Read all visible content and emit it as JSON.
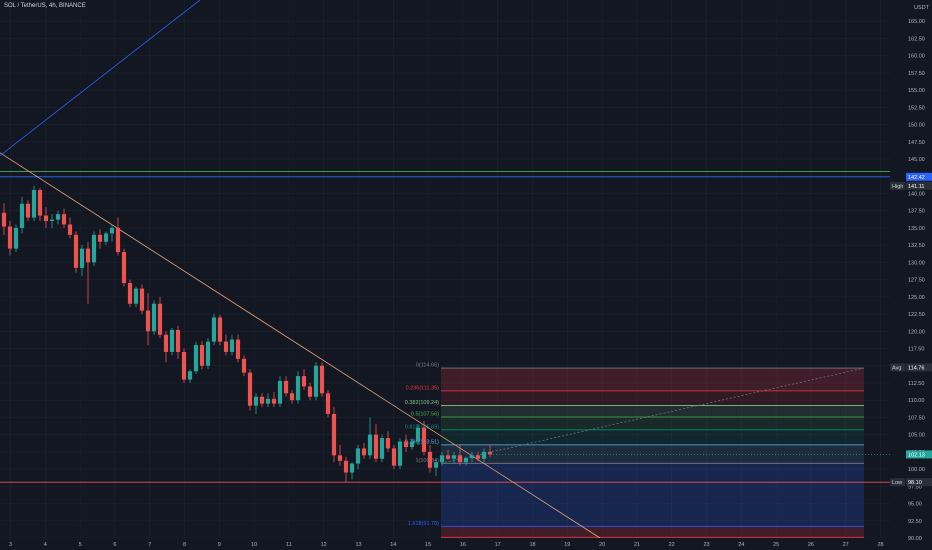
{
  "header": {
    "symbol_title": "SOL / TetherUS, 4h, BINANCE"
  },
  "colors": {
    "background": "#131722",
    "grid": "#1e2230",
    "bull": "#26a69a",
    "bear": "#ef5350",
    "axis_text": "#b2b5be",
    "trendline": "#e6a47a",
    "fib_ray": "#2962ff"
  },
  "price_axis": {
    "currency_label": "USDT",
    "min": 90,
    "max": 167.5,
    "ticks": [
      "165.00",
      "162.50",
      "160.00",
      "157.50",
      "155.00",
      "152.50",
      "150.00",
      "147.50",
      "145.00",
      "142.50",
      "140.00",
      "137.50",
      "135.00",
      "132.50",
      "130.00",
      "127.50",
      "125.00",
      "122.50",
      "120.00",
      "117.50",
      "115.00",
      "112.50",
      "110.00",
      "107.50",
      "105.00",
      "102.50",
      "100.00",
      "97.50",
      "95.00",
      "92.50",
      "90.00"
    ],
    "badges": [
      {
        "label": "",
        "value": "142.42",
        "price": 142.42,
        "color": "#2962ff"
      },
      {
        "label": "High",
        "value": "141.11",
        "price": 141.11,
        "color": "#2a2e39"
      },
      {
        "label": "Avg",
        "value": "114.76",
        "price": 114.76,
        "color": "#2a2e39"
      },
      {
        "label": "",
        "value": "102.13",
        "price": 102.13,
        "color": "#26a69a"
      },
      {
        "label": "Low",
        "value": "98.10",
        "price": 98.1,
        "color": "#2a2e39"
      }
    ]
  },
  "time_axis": {
    "labels": [
      "3",
      "4",
      "5",
      "6",
      "7",
      "8",
      "9",
      "10",
      "11",
      "12",
      "13",
      "14",
      "15",
      "16",
      "17",
      "18",
      "19",
      "20",
      "21",
      "22",
      "23",
      "24",
      "25",
      "26",
      "27",
      "28"
    ]
  },
  "horizontal_lines": [
    {
      "price": 143.2,
      "color": "#4caf50"
    },
    {
      "price": 142.42,
      "color": "#2962ff"
    },
    {
      "price": 98.1,
      "color": "#ef5350"
    }
  ],
  "fibonacci": {
    "levels": [
      {
        "label": "0(114.66)",
        "price": 114.66,
        "color": "#787b86"
      },
      {
        "label": "0.236(111.35)",
        "price": 111.35,
        "color": "#f23645"
      },
      {
        "label": "0.382(109.24)",
        "price": 109.24,
        "color": "#81c784"
      },
      {
        "label": "0.5(107.56)",
        "price": 107.56,
        "color": "#4caf50"
      },
      {
        "label": "0.618(105.69)",
        "price": 105.69,
        "color": "#089981"
      },
      {
        "label": "0.786(103.51)",
        "price": 103.51,
        "color": "#64b5f6"
      },
      {
        "label": "1(100.84)",
        "price": 100.84,
        "color": "#787b86"
      },
      {
        "label": "1.618(91.70)",
        "price": 91.7,
        "color": "#2962ff"
      },
      {
        "label": "",
        "price": 90.1,
        "color": "#f23645"
      }
    ]
  },
  "chart_data": {
    "type": "candlestick",
    "title": "SOL / TetherUS, 4h, BINANCE",
    "y_unit": "USDT",
    "ylim": [
      90,
      167.5
    ],
    "x_labels": [
      "3",
      "4",
      "5",
      "6",
      "7",
      "8",
      "9",
      "10",
      "11",
      "12",
      "13",
      "14",
      "15",
      "16",
      "17",
      "18",
      "19",
      "20",
      "21",
      "22",
      "23",
      "24",
      "25",
      "26",
      "27",
      "28"
    ],
    "candles": [
      [
        137.2,
        138.6,
        134.0,
        135.2
      ],
      [
        135.2,
        136.0,
        131.0,
        132.0
      ],
      [
        132.0,
        135.5,
        131.5,
        135.0
      ],
      [
        135.0,
        139.5,
        134.2,
        138.5
      ],
      [
        138.5,
        139.0,
        136.0,
        136.5
      ],
      [
        136.5,
        141.1,
        136.0,
        140.5
      ],
      [
        140.5,
        140.8,
        136.0,
        136.8
      ],
      [
        136.8,
        138.0,
        135.0,
        136.0
      ],
      [
        136.0,
        137.0,
        135.0,
        136.2
      ],
      [
        136.2,
        137.5,
        135.5,
        137.0
      ],
      [
        137.0,
        137.8,
        135.0,
        135.5
      ],
      [
        135.5,
        136.5,
        133.5,
        134.0
      ],
      [
        134.0,
        134.5,
        128.5,
        129.2
      ],
      [
        129.2,
        132.5,
        128.0,
        132.0
      ],
      [
        132.0,
        133.0,
        124.0,
        130.0
      ],
      [
        130.0,
        134.5,
        129.5,
        134.0
      ],
      [
        134.0,
        134.8,
        132.0,
        133.0
      ],
      [
        133.0,
        134.5,
        132.5,
        134.2
      ],
      [
        134.2,
        135.5,
        133.0,
        135.0
      ],
      [
        135.0,
        136.5,
        131.0,
        131.5
      ],
      [
        131.5,
        132.0,
        126.5,
        127.0
      ],
      [
        127.0,
        127.5,
        123.5,
        124.0
      ],
      [
        124.0,
        126.5,
        123.5,
        126.2
      ],
      [
        126.2,
        126.8,
        122.5,
        123.0
      ],
      [
        123.0,
        125.5,
        118.0,
        120.0
      ],
      [
        120.0,
        124.5,
        119.5,
        124.0
      ],
      [
        124.0,
        125.0,
        119.0,
        119.5
      ],
      [
        119.5,
        120.0,
        115.5,
        117.0
      ],
      [
        117.0,
        120.5,
        116.5,
        120.2
      ],
      [
        120.2,
        120.8,
        116.0,
        117.0
      ],
      [
        117.0,
        117.5,
        112.5,
        113.0
      ],
      [
        113.0,
        114.5,
        112.5,
        114.2
      ],
      [
        114.2,
        118.5,
        113.8,
        118.0
      ],
      [
        118.0,
        118.6,
        114.5,
        115.0
      ],
      [
        115.0,
        119.0,
        114.5,
        118.5
      ],
      [
        118.5,
        122.5,
        118.0,
        122.0
      ],
      [
        122.0,
        122.4,
        118.0,
        118.5
      ],
      [
        118.5,
        119.5,
        116.5,
        117.0
      ],
      [
        117.0,
        119.5,
        116.5,
        118.8
      ],
      [
        118.8,
        119.5,
        115.5,
        116.0
      ],
      [
        116.0,
        116.5,
        113.5,
        114.0
      ],
      [
        114.0,
        114.5,
        108.5,
        109.2
      ],
      [
        109.2,
        111.0,
        108.0,
        110.5
      ],
      [
        110.5,
        111.0,
        109.0,
        109.5
      ],
      [
        109.5,
        111.0,
        109.0,
        110.2
      ],
      [
        110.2,
        111.2,
        109.0,
        109.5
      ],
      [
        109.5,
        113.5,
        109.0,
        112.8
      ],
      [
        112.8,
        113.5,
        110.5,
        111.0
      ],
      [
        111.0,
        111.5,
        109.5,
        110.0
      ],
      [
        110.0,
        114.2,
        109.5,
        113.5
      ],
      [
        113.5,
        114.5,
        111.5,
        112.0
      ],
      [
        112.0,
        112.5,
        110.0,
        110.5
      ],
      [
        110.5,
        115.5,
        110.0,
        115.0
      ],
      [
        115.0,
        115.5,
        110.5,
        111.0
      ],
      [
        111.0,
        111.5,
        107.5,
        108.0
      ],
      [
        108.0,
        109.0,
        101.0,
        102.0
      ],
      [
        102.0,
        103.5,
        100.5,
        101.2
      ],
      [
        101.2,
        101.8,
        98.1,
        99.5
      ],
      [
        99.5,
        101.0,
        98.5,
        100.8
      ],
      [
        100.8,
        103.5,
        100.0,
        103.0
      ],
      [
        103.0,
        103.8,
        101.5,
        102.0
      ],
      [
        102.0,
        107.5,
        101.5,
        105.0
      ],
      [
        105.0,
        106.5,
        101.0,
        101.5
      ],
      [
        101.5,
        105.0,
        101.0,
        104.5
      ],
      [
        104.5,
        105.5,
        102.5,
        103.0
      ],
      [
        103.0,
        103.5,
        100.0,
        100.5
      ],
      [
        100.5,
        104.5,
        100.0,
        104.0
      ],
      [
        104.0,
        105.0,
        102.5,
        103.2
      ],
      [
        103.2,
        104.5,
        102.8,
        104.0
      ],
      [
        104.0,
        106.5,
        103.5,
        106.0
      ],
      [
        106.0,
        107.0,
        102.0,
        102.5
      ],
      [
        102.5,
        103.5,
        99.5,
        100.2
      ],
      [
        100.2,
        101.5,
        99.0,
        101.0
      ],
      [
        101.0,
        102.5,
        100.5,
        102.0
      ],
      [
        102.0,
        102.8,
        101.3,
        101.5
      ],
      [
        101.5,
        102.5,
        100.8,
        102.0
      ],
      [
        102.0,
        103.5,
        100.5,
        101.0
      ],
      [
        101.0,
        101.8,
        100.5,
        101.6
      ],
      [
        101.6,
        102.5,
        101.0,
        102.0
      ],
      [
        102.0,
        102.5,
        101.2,
        101.5
      ],
      [
        101.5,
        103.0,
        101.0,
        102.5
      ],
      [
        102.5,
        103.5,
        101.8,
        102.13
      ]
    ]
  }
}
